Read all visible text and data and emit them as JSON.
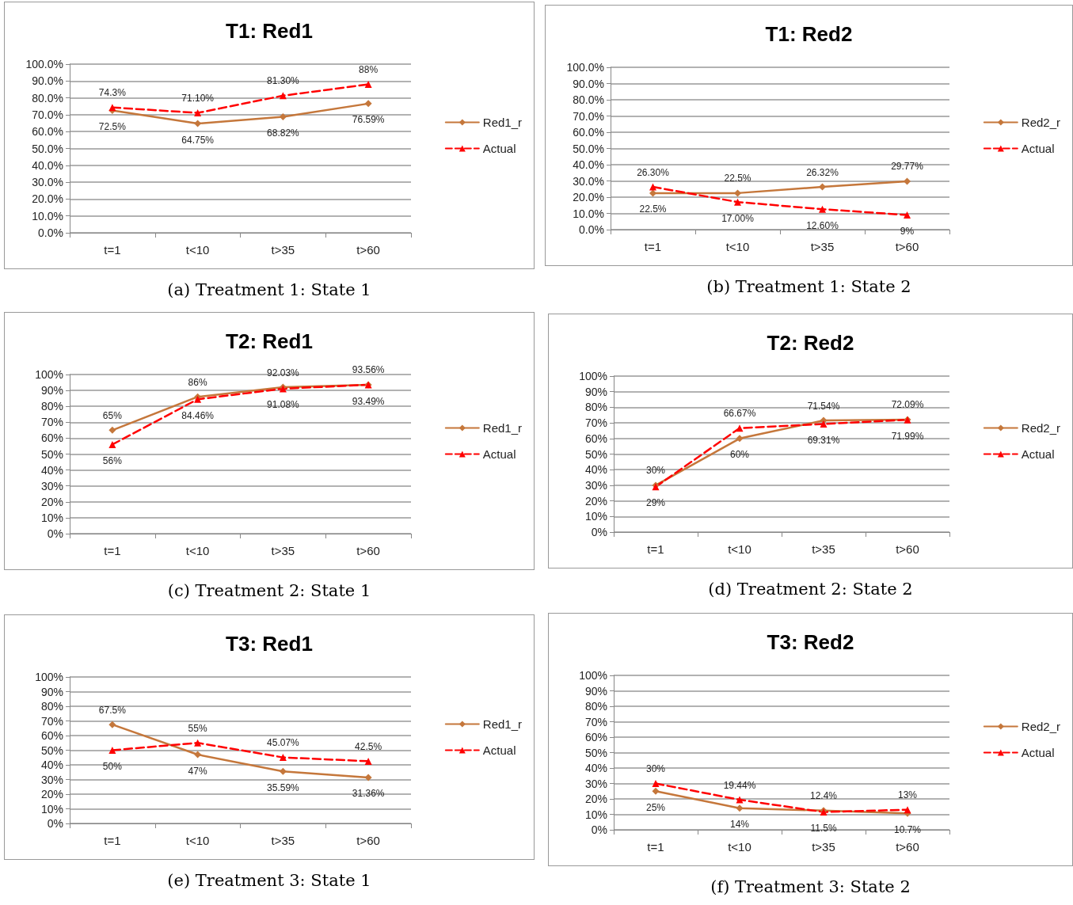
{
  "chart_data": [
    {
      "type": "line",
      "title": "T1: Red1",
      "categories": [
        "t=1",
        "t<10",
        "t>35",
        "t>60"
      ],
      "ylim": [
        0,
        100
      ],
      "yticks": [
        {
          "value": 0,
          "label": "0.0%"
        },
        {
          "value": 10,
          "label": "10.0%"
        },
        {
          "value": 20,
          "label": "20.0%"
        },
        {
          "value": 30,
          "label": "30.0%"
        },
        {
          "value": 40,
          "label": "40.0%"
        },
        {
          "value": 50,
          "label": "50.0%"
        },
        {
          "value": 60,
          "label": "60.0%"
        },
        {
          "value": 70,
          "label": "70.0%"
        },
        {
          "value": 80,
          "label": "80.0%"
        },
        {
          "value": 90,
          "label": "90.0%"
        },
        {
          "value": 100,
          "label": "100.0%"
        }
      ],
      "grid": "y",
      "legend": "right",
      "annotations": [
        "(a) Treatment 1: State 1"
      ],
      "series": [
        {
          "name": "Red1_r",
          "color": "#c5773b",
          "marker": "diamond",
          "line_style": "solid",
          "values": [
            72.5,
            64.75,
            68.82,
            76.59
          ],
          "value_labels": [
            "72.5%",
            "64.75%",
            "68.82%",
            "76.59%"
          ]
        },
        {
          "name": "Actual",
          "color": "#ff0000",
          "marker": "triangle",
          "line_style": "dashed",
          "values": [
            74.3,
            71.1,
            81.3,
            88
          ],
          "value_labels": [
            "74.3%",
            "71.10%",
            "81.30%",
            "88%"
          ]
        }
      ]
    },
    {
      "type": "line",
      "title": "T1: Red2",
      "categories": [
        "t=1",
        "t<10",
        "t>35",
        "t>60"
      ],
      "ylim": [
        0,
        100
      ],
      "yticks": [
        {
          "value": 0,
          "label": "0.0%"
        },
        {
          "value": 10,
          "label": "10.0%"
        },
        {
          "value": 20,
          "label": "20.0%"
        },
        {
          "value": 30,
          "label": "30.0%"
        },
        {
          "value": 40,
          "label": "40.0%"
        },
        {
          "value": 50,
          "label": "50.0%"
        },
        {
          "value": 60,
          "label": "60.0%"
        },
        {
          "value": 70,
          "label": "70.0%"
        },
        {
          "value": 80,
          "label": "80.0%"
        },
        {
          "value": 90,
          "label": "90.0%"
        },
        {
          "value": 100,
          "label": "100.0%"
        }
      ],
      "grid": "y",
      "legend": "right",
      "annotations": [
        "(b) Treatment 1: State 2"
      ],
      "series": [
        {
          "name": "Red2_r",
          "color": "#c5773b",
          "marker": "diamond",
          "line_style": "solid",
          "values": [
            22.5,
            22.5,
            26.32,
            29.77
          ],
          "value_labels": [
            "22.5%",
            "22.5%",
            "26.32%",
            "29.77%"
          ]
        },
        {
          "name": "Actual",
          "color": "#ff0000",
          "marker": "triangle",
          "line_style": "dashed",
          "values": [
            26.3,
            17,
            12.6,
            9
          ],
          "value_labels": [
            "26.30%",
            "17.00%",
            "12.60%",
            "9%"
          ]
        }
      ]
    },
    {
      "type": "line",
      "title": "T2: Red1",
      "categories": [
        "t=1",
        "t<10",
        "t>35",
        "t>60"
      ],
      "ylim": [
        0,
        100
      ],
      "yticks": [
        {
          "value": 0,
          "label": "0%"
        },
        {
          "value": 10,
          "label": "10%"
        },
        {
          "value": 20,
          "label": "20%"
        },
        {
          "value": 30,
          "label": "30%"
        },
        {
          "value": 40,
          "label": "40%"
        },
        {
          "value": 50,
          "label": "50%"
        },
        {
          "value": 60,
          "label": "60%"
        },
        {
          "value": 70,
          "label": "70%"
        },
        {
          "value": 80,
          "label": "80%"
        },
        {
          "value": 90,
          "label": "90%"
        },
        {
          "value": 100,
          "label": "100%"
        }
      ],
      "grid": "y",
      "legend": "right",
      "annotations": [
        "(c) Treatment 2: State 1"
      ],
      "series": [
        {
          "name": "Red1_r",
          "color": "#c5773b",
          "marker": "diamond",
          "line_style": "solid",
          "values": [
            65,
            86,
            92.03,
            93.49
          ],
          "value_labels": [
            "65%",
            "86%",
            "92.03%",
            "93.49%"
          ]
        },
        {
          "name": "Actual",
          "color": "#ff0000",
          "marker": "triangle",
          "line_style": "dashed",
          "values": [
            56,
            84.46,
            91.08,
            93.56
          ],
          "value_labels": [
            "56%",
            "84.46%",
            "91.08%",
            "93.56%"
          ]
        }
      ]
    },
    {
      "type": "line",
      "title": "T2: Red2",
      "categories": [
        "t=1",
        "t<10",
        "t>35",
        "t>60"
      ],
      "ylim": [
        0,
        100
      ],
      "yticks": [
        {
          "value": 0,
          "label": "0%"
        },
        {
          "value": 10,
          "label": "10%"
        },
        {
          "value": 20,
          "label": "20%"
        },
        {
          "value": 30,
          "label": "30%"
        },
        {
          "value": 40,
          "label": "40%"
        },
        {
          "value": 50,
          "label": "50%"
        },
        {
          "value": 60,
          "label": "60%"
        },
        {
          "value": 70,
          "label": "70%"
        },
        {
          "value": 80,
          "label": "80%"
        },
        {
          "value": 90,
          "label": "90%"
        },
        {
          "value": 100,
          "label": "100%"
        }
      ],
      "grid": "y",
      "legend": "right",
      "annotations": [
        "(d) Treatment 2: State 2"
      ],
      "series": [
        {
          "name": "Red2_r",
          "color": "#c5773b",
          "marker": "diamond",
          "line_style": "solid",
          "values": [
            30,
            60,
            71.54,
            72.09
          ],
          "value_labels": [
            "30%",
            "60%",
            "71.54%",
            "72.09%"
          ]
        },
        {
          "name": "Actual",
          "color": "#ff0000",
          "marker": "triangle",
          "line_style": "dashed",
          "values": [
            29,
            66.67,
            69.31,
            71.99
          ],
          "value_labels": [
            "29%",
            "66.67%",
            "69.31%",
            "71.99%"
          ]
        }
      ]
    },
    {
      "type": "line",
      "title": "T3: Red1",
      "categories": [
        "t=1",
        "t<10",
        "t>35",
        "t>60"
      ],
      "ylim": [
        0,
        100
      ],
      "yticks": [
        {
          "value": 0,
          "label": "0%"
        },
        {
          "value": 10,
          "label": "10%"
        },
        {
          "value": 20,
          "label": "20%"
        },
        {
          "value": 30,
          "label": "30%"
        },
        {
          "value": 40,
          "label": "40%"
        },
        {
          "value": 50,
          "label": "50%"
        },
        {
          "value": 60,
          "label": "60%"
        },
        {
          "value": 70,
          "label": "70%"
        },
        {
          "value": 80,
          "label": "80%"
        },
        {
          "value": 90,
          "label": "90%"
        },
        {
          "value": 100,
          "label": "100%"
        }
      ],
      "grid": "y",
      "legend": "right",
      "annotations": [
        "(e) Treatment 3: State 1"
      ],
      "series": [
        {
          "name": "Red1_r",
          "color": "#c5773b",
          "marker": "diamond",
          "line_style": "solid",
          "values": [
            67.5,
            47,
            35.59,
            31.36
          ],
          "value_labels": [
            "67.5%",
            "47%",
            "35.59%",
            "31.36%"
          ]
        },
        {
          "name": "Actual",
          "color": "#ff0000",
          "marker": "triangle",
          "line_style": "dashed",
          "values": [
            50,
            55,
            45.07,
            42.5
          ],
          "value_labels": [
            "50%",
            "55%",
            "45.07%",
            "42.5%"
          ]
        }
      ]
    },
    {
      "type": "line",
      "title": "T3: Red2",
      "categories": [
        "t=1",
        "t<10",
        "t>35",
        "t>60"
      ],
      "ylim": [
        0,
        100
      ],
      "yticks": [
        {
          "value": 0,
          "label": "0%"
        },
        {
          "value": 10,
          "label": "10%"
        },
        {
          "value": 20,
          "label": "20%"
        },
        {
          "value": 30,
          "label": "30%"
        },
        {
          "value": 40,
          "label": "40%"
        },
        {
          "value": 50,
          "label": "50%"
        },
        {
          "value": 60,
          "label": "60%"
        },
        {
          "value": 70,
          "label": "70%"
        },
        {
          "value": 80,
          "label": "80%"
        },
        {
          "value": 90,
          "label": "90%"
        },
        {
          "value": 100,
          "label": "100%"
        }
      ],
      "grid": "y",
      "legend": "right",
      "annotations": [
        "(f) Treatment 3: State 2"
      ],
      "series": [
        {
          "name": "Red2_r",
          "color": "#c5773b",
          "marker": "diamond",
          "line_style": "solid",
          "values": [
            25,
            14,
            12.4,
            10.7
          ],
          "value_labels": [
            "25%",
            "14%",
            "12.4%",
            "10.7%"
          ]
        },
        {
          "name": "Actual",
          "color": "#ff0000",
          "marker": "triangle",
          "line_style": "dashed",
          "values": [
            30,
            19.44,
            11.5,
            13
          ],
          "value_labels": [
            "30%",
            "19.44%",
            "11.5%",
            "13%"
          ]
        }
      ]
    }
  ]
}
